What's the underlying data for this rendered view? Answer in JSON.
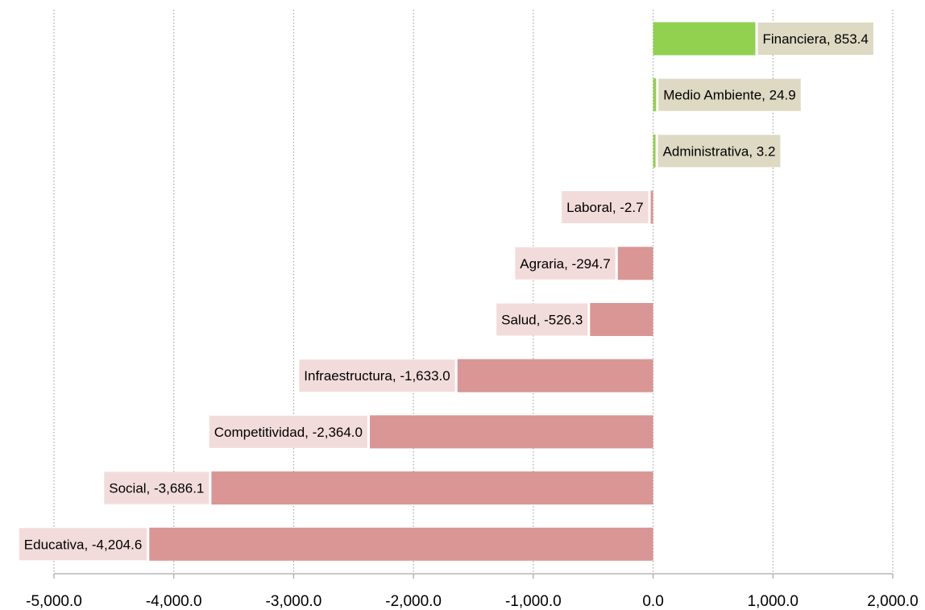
{
  "chart_data": {
    "type": "bar",
    "orientation": "horizontal",
    "categories": [
      "Financiera",
      "Medio Ambiente",
      "Administrativa",
      "Laboral",
      "Agraria",
      "Salud",
      "Infraestructura",
      "Competitividad",
      "Social",
      "Educativa"
    ],
    "values": [
      853.4,
      24.9,
      3.2,
      -2.7,
      -294.7,
      -526.3,
      -1633.0,
      -2364.0,
      -3686.1,
      -4204.6
    ],
    "data_labels": [
      "Financiera, 853.4",
      "Medio Ambiente, 24.9",
      "Administrativa, 3.2",
      "Laboral, -2.7",
      "Agraria, -294.7",
      "Salud, -526.3",
      "Infraestructura, -1,633.0",
      "Competitividad, -2,364.0",
      "Social, -3,686.1",
      "Educativa, -4,204.6"
    ],
    "xlim": [
      -5000,
      2000
    ],
    "x_ticks": [
      -5000,
      -4000,
      -3000,
      -2000,
      -1000,
      0,
      1000,
      2000
    ],
    "x_tick_labels": [
      "-5,000.0",
      "-4,000.0",
      "-3,000.0",
      "-2,000.0",
      "-1,000.0",
      "0.0",
      "1,000.0",
      "2,000.0"
    ],
    "grid": "vertical dotted",
    "title": "",
    "xlabel": "",
    "ylabel": "",
    "colors": {
      "positive_bar": "#92d050",
      "negative_bar": "#d99694",
      "positive_label_bg": "#ddd9c3",
      "negative_label_bg": "#f2dcdb",
      "grid": "#a6a6a6",
      "axis": "#a6a6a6"
    }
  }
}
